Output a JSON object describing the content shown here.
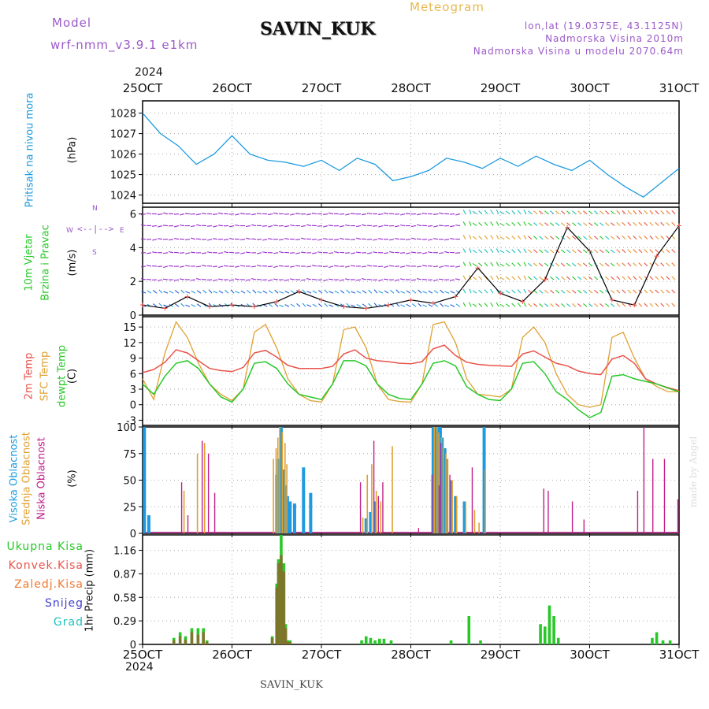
{
  "header": {
    "model_label": "Model",
    "model_name": "wrf-nmm_v3.9.1  e1km",
    "station": "SAVIN_KUK",
    "meteogram_label": "Meteogram",
    "lonlat": "lon,lat (19.0375E, 43.1125N)",
    "altitude": "Nadmorska Visina 2010m",
    "model_altitude": "Nadmorska Visina u modelu 2070.64m",
    "year_top": "2024",
    "year_bottom": "2024",
    "footer_station": "SAVIN_KUK",
    "credit": "made by Angel"
  },
  "wind_legend": {
    "w": "W",
    "e": "E",
    "n": "N",
    "s": "S"
  },
  "colors": {
    "pressure": "#1e9be0",
    "windspeed": "#000000",
    "t2m": "#e8534b",
    "sfc": "#e0a030",
    "dewpt": "#28c828",
    "high_cloud": "#1e9be0",
    "mid_cloud": "#e0a030",
    "low_cloud": "#c0208a",
    "total_precip": "#28c828",
    "convective": "#e8534b",
    "freezing": "#f07830",
    "snow": "#4040d0",
    "hail": "#20c0c0",
    "purple_text": "#9b59c9",
    "gold_text": "#e8b850"
  },
  "chart_data": [
    {
      "type": "line",
      "name": "pressure",
      "ylabel_lines": [
        "Pritisak na nivou mora",
        "(hPa)"
      ],
      "ylim": [
        1023.6,
        1028.6
      ],
      "yticks": [
        1024,
        1025,
        1026,
        1027,
        1028
      ],
      "grid": true,
      "x_ticks": [
        "25OCT",
        "26OCT",
        "27OCT",
        "28OCT",
        "29OCT",
        "30OCT",
        "31OCT"
      ],
      "x": [
        0,
        0.2,
        0.4,
        0.6,
        0.8,
        1.0,
        1.2,
        1.4,
        1.6,
        1.8,
        2.0,
        2.2,
        2.4,
        2.6,
        2.8,
        3.0,
        3.2,
        3.4,
        3.6,
        3.8,
        4.0,
        4.2,
        4.4,
        4.6,
        4.8,
        5.0,
        5.2,
        5.4,
        5.6,
        5.8,
        6.0
      ],
      "series": [
        {
          "name": "Pritisak na nivou mora",
          "values": [
            1028.0,
            1027.0,
            1026.4,
            1025.5,
            1026.0,
            1026.9,
            1026.0,
            1025.7,
            1025.6,
            1025.4,
            1025.7,
            1025.2,
            1025.8,
            1025.5,
            1024.7,
            1024.9,
            1025.2,
            1025.8,
            1025.6,
            1025.3,
            1025.8,
            1025.4,
            1025.9,
            1025.5,
            1025.2,
            1025.7,
            1025.0,
            1024.4,
            1023.9,
            1024.6,
            1025.3
          ]
        }
      ]
    },
    {
      "type": "line",
      "name": "wind",
      "ylabel_lines": [
        "10m Vjetar",
        "Brzina i Pravac",
        "(m/s)"
      ],
      "ylim": [
        0,
        6.4
      ],
      "yticks": [
        0,
        2,
        4,
        6
      ],
      "grid": true,
      "x": [
        0,
        0.25,
        0.5,
        0.75,
        1.0,
        1.25,
        1.5,
        1.75,
        2.0,
        2.25,
        2.5,
        2.75,
        3.0,
        3.25,
        3.5,
        3.75,
        4.0,
        4.25,
        4.5,
        4.75,
        5.0,
        5.25,
        5.5,
        5.75,
        6.0
      ],
      "series": [
        {
          "name": "Brzina",
          "values": [
            0.6,
            0.4,
            1.1,
            0.5,
            0.6,
            0.5,
            0.8,
            1.4,
            0.9,
            0.5,
            0.4,
            0.6,
            0.9,
            0.7,
            1.1,
            2.8,
            1.3,
            0.8,
            2.1,
            5.2,
            3.8,
            0.9,
            0.6,
            3.5,
            5.3
          ]
        }
      ]
    },
    {
      "type": "line",
      "name": "temperature",
      "ylabel_lines": [
        "2m Temp",
        "SFC Temp",
        "dewpt Temp",
        "(C)"
      ],
      "ylim": [
        -4,
        17
      ],
      "yticks": [
        -3,
        0,
        3,
        6,
        9,
        12,
        15
      ],
      "grid": true,
      "x": [
        0,
        0.125,
        0.25,
        0.375,
        0.5,
        0.625,
        0.75,
        0.875,
        1.0,
        1.125,
        1.25,
        1.375,
        1.5,
        1.625,
        1.75,
        1.875,
        2.0,
        2.125,
        2.25,
        2.375,
        2.5,
        2.625,
        2.75,
        2.875,
        3.0,
        3.125,
        3.25,
        3.375,
        3.5,
        3.625,
        3.75,
        3.875,
        4.0,
        4.125,
        4.25,
        4.375,
        4.5,
        4.625,
        4.75,
        4.875,
        5.0,
        5.125,
        5.25,
        5.375,
        5.5,
        5.625,
        5.75,
        5.875,
        6.0
      ],
      "series": [
        {
          "name": "2m Temp",
          "values": [
            6.2,
            6.8,
            8.2,
            10.6,
            10.0,
            8.5,
            7.0,
            6.6,
            6.4,
            7.2,
            10.0,
            10.5,
            9.2,
            7.6,
            7.0,
            7.0,
            7.0,
            7.4,
            9.8,
            10.6,
            9.0,
            8.5,
            8.3,
            8.0,
            7.9,
            8.3,
            10.8,
            11.5,
            9.5,
            8.2,
            7.8,
            7.6,
            7.5,
            7.4,
            9.8,
            10.4,
            9.2,
            8.0,
            7.5,
            6.5,
            6.0,
            5.8,
            8.8,
            9.5,
            8.0,
            5.0,
            4.0,
            3.3,
            2.7
          ]
        },
        {
          "name": "SFC Temp",
          "values": [
            5.0,
            1.0,
            10.0,
            16.0,
            13.0,
            8.0,
            4.0,
            2.0,
            0.8,
            3.0,
            14.0,
            15.5,
            11.0,
            5.0,
            2.0,
            0.8,
            0.5,
            4.0,
            14.5,
            15.0,
            11.0,
            4.0,
            1.0,
            0.6,
            0.5,
            4.0,
            15.5,
            16.0,
            12.0,
            5.0,
            2.0,
            1.8,
            1.5,
            3.0,
            13.0,
            15.0,
            12.0,
            6.0,
            2.0,
            0.0,
            -0.5,
            0.0,
            13.0,
            14.0,
            9.0,
            5.0,
            3.5,
            2.5,
            2.5
          ]
        },
        {
          "name": "dewpt Temp",
          "values": [
            4.0,
            2.0,
            5.5,
            8.0,
            8.5,
            7.0,
            4.0,
            1.5,
            0.5,
            3.0,
            8.0,
            8.3,
            7.0,
            4.0,
            2.0,
            1.5,
            1.0,
            4.0,
            8.5,
            8.5,
            7.5,
            4.0,
            2.0,
            1.2,
            1.0,
            4.0,
            8.0,
            8.5,
            7.5,
            3.5,
            2.0,
            1.0,
            0.8,
            3.0,
            8.0,
            8.3,
            6.0,
            2.5,
            1.0,
            -1.0,
            -2.5,
            -1.5,
            5.5,
            5.8,
            5.0,
            4.5,
            4.0,
            3.2,
            2.5
          ]
        }
      ]
    },
    {
      "type": "bar",
      "name": "clouds",
      "ylabel_lines": [
        "Visoka Oblacnost",
        "Srednja Oblacnost",
        "Niska Oblacnost",
        "(%)"
      ],
      "ylim": [
        0,
        100
      ],
      "yticks": [
        0,
        25,
        50,
        75,
        100
      ],
      "grid": true,
      "x": [
        0.02,
        0.07,
        0.45,
        0.52,
        0.6,
        0.68,
        0.75,
        0.82,
        1.45,
        1.48,
        1.5,
        1.52,
        1.55,
        1.58,
        1.6,
        1.62,
        1.65,
        1.7,
        1.8,
        1.88,
        2.45,
        2.5,
        2.55,
        2.6,
        2.65,
        2.7,
        2.78,
        2.85,
        3.1,
        3.25,
        3.28,
        3.3,
        3.33,
        3.35,
        3.38,
        3.4,
        3.45,
        3.5,
        3.6,
        3.7,
        3.75,
        3.82,
        3.88,
        4.5,
        4.55,
        4.65,
        4.82,
        4.95,
        5.55,
        5.62,
        5.72,
        5.85,
        5.92,
        6.0
      ],
      "series": [
        {
          "name": "Visoka Oblacnost",
          "values": [
            100,
            17,
            0,
            0,
            0,
            0,
            0,
            0,
            0,
            0,
            55,
            70,
            100,
            60,
            45,
            35,
            30,
            28,
            62,
            38,
            0,
            14,
            20,
            30,
            0,
            0,
            0,
            0,
            0,
            100,
            100,
            100,
            100,
            90,
            80,
            70,
            50,
            35,
            30,
            0,
            0,
            100,
            0,
            0,
            0,
            0,
            0,
            0,
            0,
            0,
            0,
            0,
            0,
            0
          ]
        },
        {
          "name": "Srednja Oblacnost",
          "values": [
            0,
            0,
            40,
            0,
            75,
            85,
            0,
            0,
            70,
            80,
            90,
            100,
            95,
            85,
            65,
            0,
            0,
            0,
            0,
            0,
            15,
            55,
            65,
            40,
            30,
            0,
            82,
            0,
            0,
            100,
            100,
            95,
            90,
            80,
            75,
            70,
            50,
            35,
            30,
            22,
            10,
            60,
            0,
            0,
            0,
            0,
            0,
            0,
            0,
            0,
            0,
            0,
            0,
            0
          ]
        },
        {
          "name": "Niska Oblacnost",
          "values": [
            0,
            0,
            48,
            17,
            0,
            87,
            75,
            38,
            0,
            0,
            0,
            0,
            0,
            0,
            0,
            0,
            0,
            0,
            0,
            0,
            48,
            0,
            0,
            87,
            35,
            48,
            0,
            0,
            5,
            55,
            0,
            0,
            45,
            85,
            0,
            0,
            55,
            0,
            0,
            62,
            0,
            0,
            0,
            42,
            40,
            0,
            30,
            13,
            40,
            100,
            70,
            70,
            0,
            32
          ]
        }
      ]
    },
    {
      "type": "bar",
      "name": "precipitation",
      "ylabel_lines": [
        "1hr Precip (mm)"
      ],
      "legend": [
        "Ukupna Kisa",
        "Konvek.Kisa",
        "Zaledj.Kisa",
        "Snijeg",
        "Grad"
      ],
      "ylim": [
        0,
        1.35
      ],
      "yticks": [
        0,
        0.29,
        0.58,
        0.87,
        1.16
      ],
      "ytick_labels": [
        "0",
        "0.29",
        "0.58",
        "0.87",
        "1.16"
      ],
      "grid": true,
      "x": [
        0.35,
        0.42,
        0.48,
        0.55,
        0.62,
        0.68,
        0.72,
        1.45,
        1.5,
        1.52,
        1.55,
        1.58,
        1.6,
        1.62,
        1.65,
        2.45,
        2.5,
        2.55,
        2.6,
        2.65,
        2.7,
        2.78,
        3.45,
        3.65,
        3.78,
        4.45,
        4.5,
        4.55,
        4.6,
        4.65,
        5.7,
        5.75,
        5.82,
        5.9
      ],
      "series": [
        {
          "name": "Ukupna Kisa",
          "values": [
            0.08,
            0.15,
            0.1,
            0.2,
            0.2,
            0.2,
            0.05,
            0.1,
            0.75,
            1.05,
            1.35,
            1.0,
            0.25,
            0.05,
            0.05,
            0.05,
            0.1,
            0.08,
            0.05,
            0.07,
            0.07,
            0.05,
            0.05,
            0.35,
            0.05,
            0.25,
            0.22,
            0.48,
            0.35,
            0.08,
            0.08,
            0.15,
            0.05,
            0.05
          ]
        },
        {
          "name": "Konvek.Kisa",
          "values": [
            0.05,
            0.1,
            0.06,
            0.15,
            0.12,
            0.15,
            0.03,
            0.08,
            0.7,
            1.0,
            1.1,
            0.9,
            0.2,
            0.03,
            0.03,
            0.0,
            0.0,
            0.0,
            0.0,
            0.0,
            0.0,
            0.0,
            0.0,
            0.0,
            0.0,
            0.0,
            0.0,
            0.0,
            0.0,
            0.0,
            0.0,
            0.0,
            0.0,
            0.0
          ]
        }
      ]
    }
  ]
}
